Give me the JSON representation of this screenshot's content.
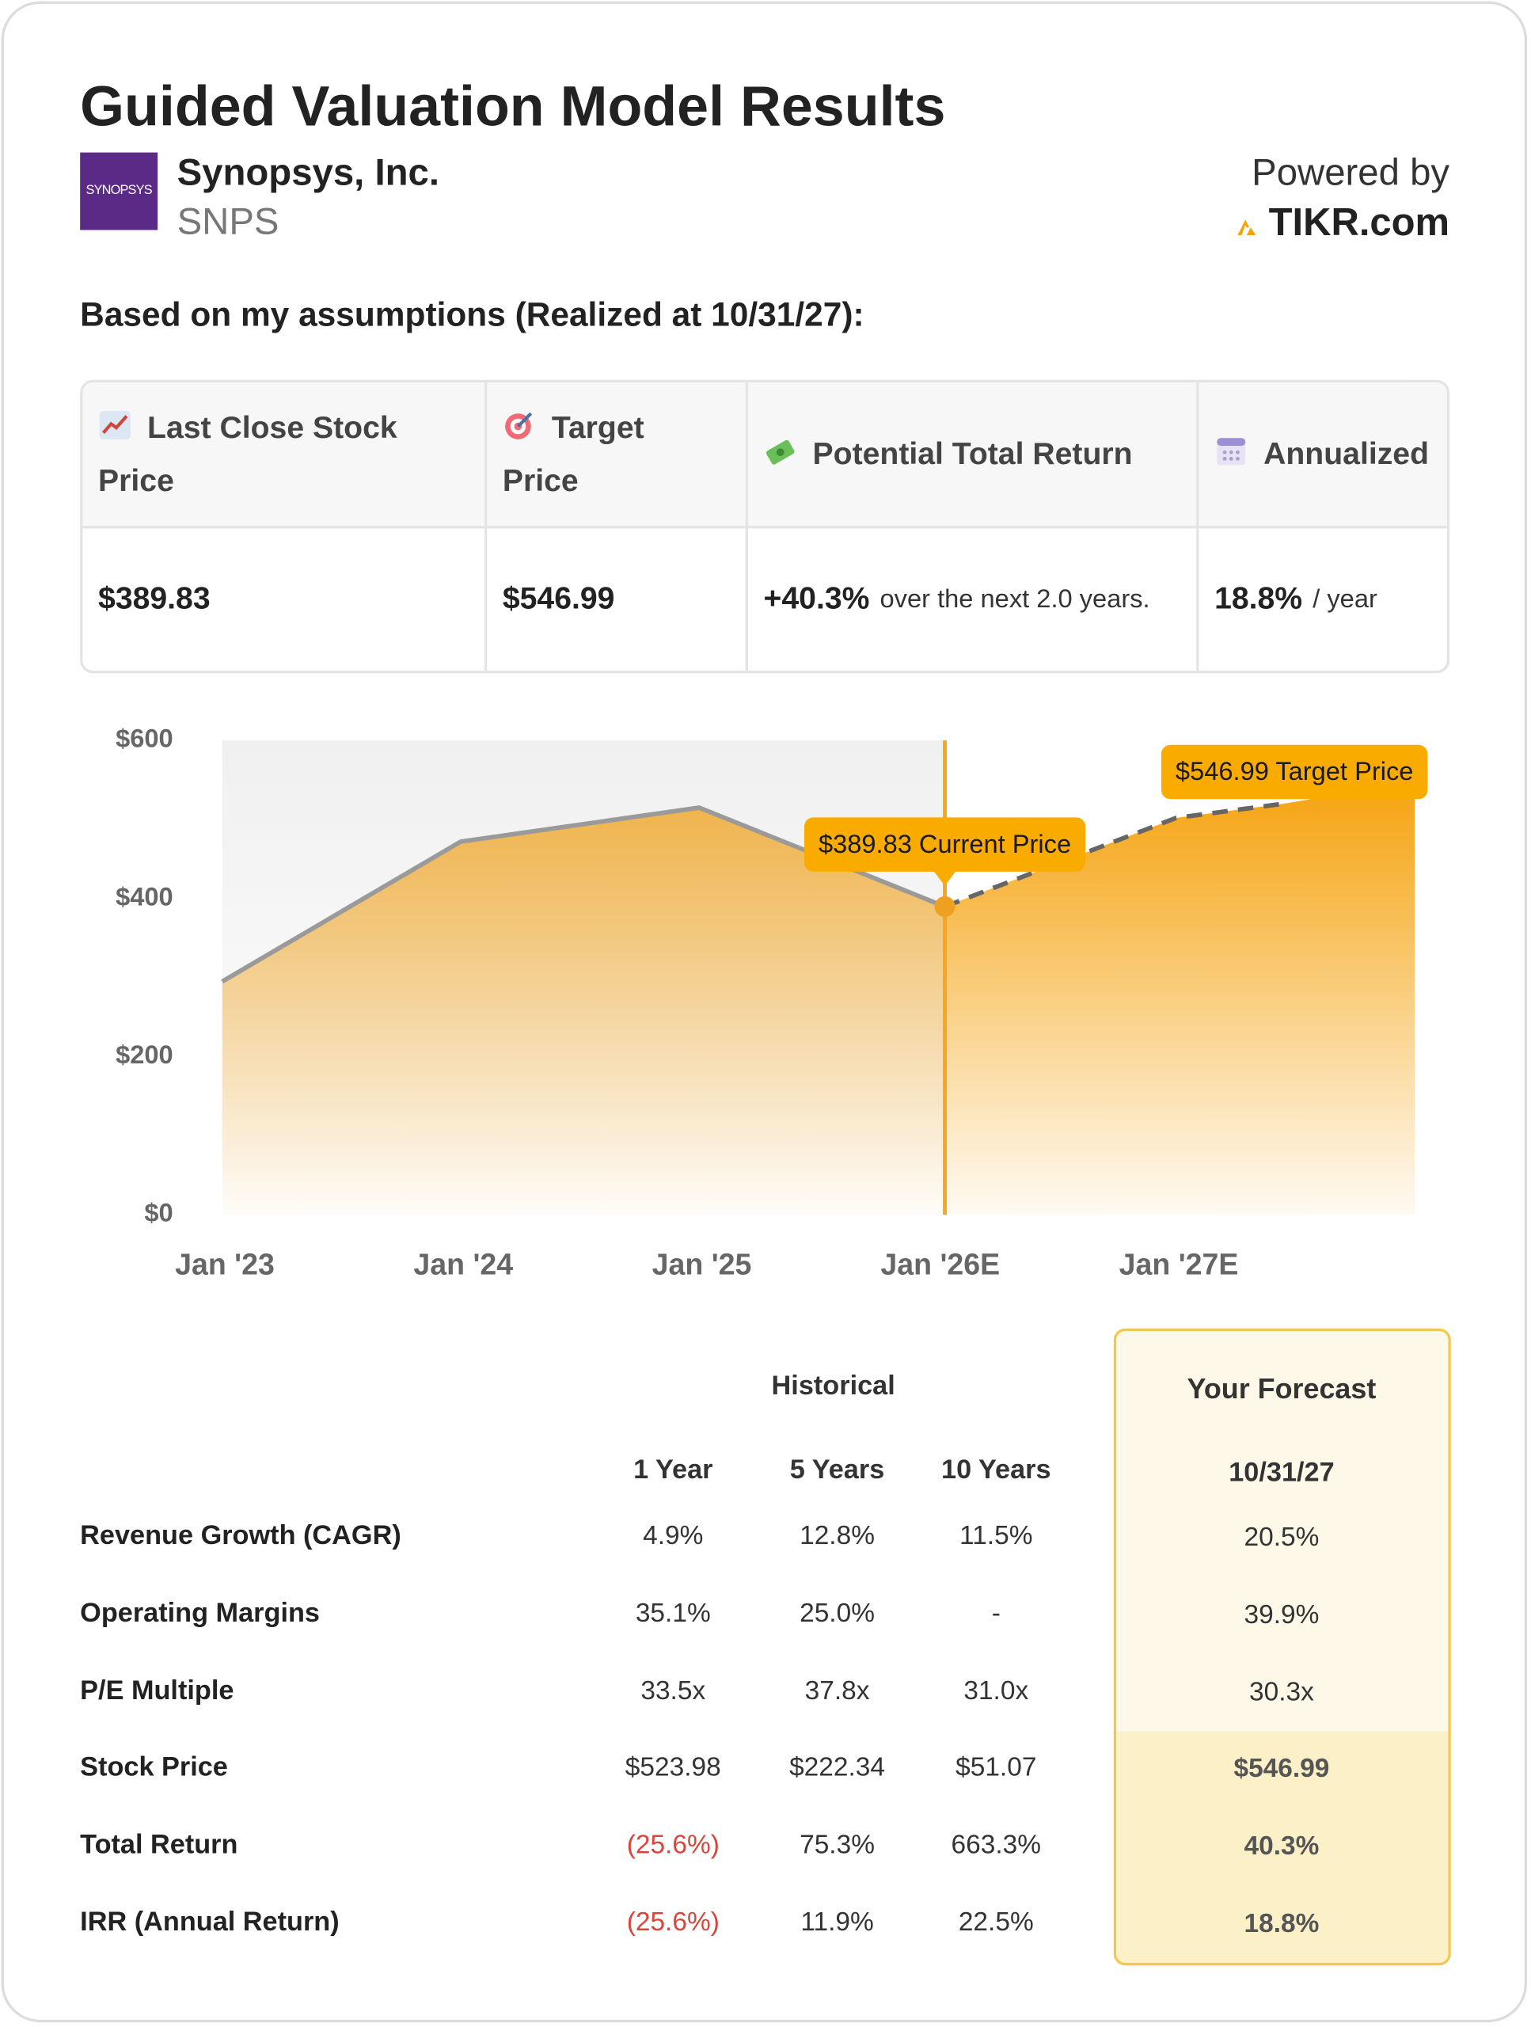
{
  "header": {
    "title": "Guided Valuation Model Results",
    "logo_text": "SYNOPSYS",
    "company": "Synopsys, Inc.",
    "ticker": "SNPS",
    "powered_by": "Powered by",
    "brand": "TIKR.com"
  },
  "assumptions": "Based on my assumptions (Realized at 10/31/27):",
  "summary": {
    "headers": [
      "Last Close Stock Price",
      "Target Price",
      "Potential Total Return",
      "Annualized"
    ],
    "cells": [
      {
        "value": "$389.83"
      },
      {
        "value": "$546.99"
      },
      {
        "value": "+40.3%",
        "note": "over the next 2.0 years."
      },
      {
        "value": "18.8%",
        "note": "/ year"
      }
    ]
  },
  "chart": {
    "type": "line",
    "xlim": [
      2023,
      2028
    ],
    "xticks": [
      {
        "value": 2023,
        "label": "Jan '23"
      },
      {
        "value": 2024,
        "label": "Jan '24"
      },
      {
        "value": 2025,
        "label": "Jan '25"
      },
      {
        "value": 2026,
        "label": "Jan '26E"
      },
      {
        "value": 2027,
        "label": "Jan '27E"
      }
    ],
    "ylim": [
      0,
      600
    ],
    "yticks": [
      {
        "value": 0,
        "label": "$0"
      },
      {
        "value": 200,
        "label": "$200"
      },
      {
        "value": 400,
        "label": "$400"
      },
      {
        "value": 600,
        "label": "$600"
      }
    ],
    "series": [
      {
        "color": "#9a9a9a",
        "fill": "#f0ad3a",
        "dashed": false,
        "x": [
          2023,
          2024,
          2025,
          2026.03
        ],
        "values": [
          295,
          472,
          515,
          389.83
        ]
      },
      {
        "color": "#666666",
        "fill": "#f5a30f",
        "dashed": true,
        "x": [
          2026.03,
          2027,
          2027.45,
          2028
        ],
        "values": [
          389.83,
          502,
          520,
          546.99
        ]
      }
    ],
    "annotations": [
      "$389.83 Current Price",
      "$546.99 Target Price"
    ]
  },
  "metrics": {
    "group": "Historical",
    "forecast_title": "Your Forecast",
    "columns": [
      "1 Year",
      "5 Years",
      "10 Years",
      "10/31/27"
    ],
    "rows": [
      {
        "label": "Revenue Growth (CAGR)",
        "values": [
          "4.9%",
          "12.8%",
          "11.5%",
          "20.5%"
        ]
      },
      {
        "label": "Operating Margins",
        "values": [
          "35.1%",
          "25.0%",
          "-",
          "39.9%"
        ]
      },
      {
        "label": "P/E Multiple",
        "values": [
          "33.5x",
          "37.8x",
          "31.0x",
          "30.3x"
        ]
      },
      {
        "label": "Stock Price",
        "values": [
          "$523.98",
          "$222.34",
          "$51.07",
          "$546.99"
        ]
      },
      {
        "label": "Total Return",
        "values": [
          "(25.6%)",
          "75.3%",
          "663.3%",
          "40.3%"
        ]
      },
      {
        "label": "IRR (Annual Return)",
        "values": [
          "(25.6%)",
          "11.9%",
          "22.5%",
          "18.8%"
        ]
      }
    ]
  }
}
